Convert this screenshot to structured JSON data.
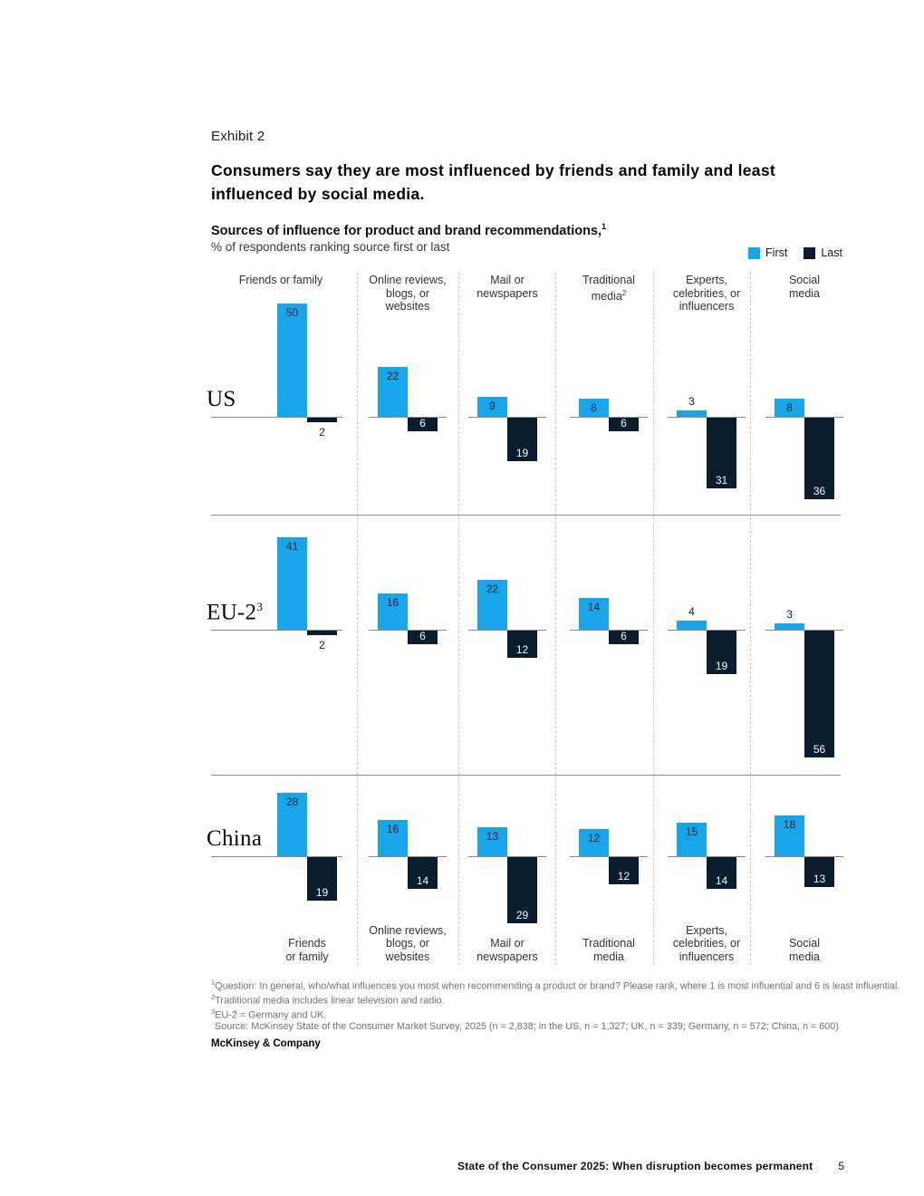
{
  "exhibit_label": "Exhibit 2",
  "title_lines": [
    "Consumers say they are most influenced by friends and family and least",
    "influenced by social media."
  ],
  "chart_title": "Sources of influence for product and brand recommendations,",
  "chart_title_sup": "1",
  "chart_subtitle": "% of respondents ranking source first or last",
  "chart_data": {
    "type": "bar",
    "title": "Sources of influence for product and brand recommendations",
    "unit": "% of respondents ranking source first or last",
    "legend_labels": [
      "First",
      "Last"
    ],
    "legend_position": "top-right",
    "colors": {
      "first": "#18A5E9",
      "last": "#0A1D2E"
    },
    "categories": [
      "Friends or family",
      "Online reviews, blogs, or websites",
      "Mail or newspapers",
      "Traditional media",
      "Experts, celebrities, or influencers",
      "Social media"
    ],
    "column_headers_top": [
      {
        "lines": [
          "Friends or family"
        ],
        "sup": ""
      },
      {
        "lines": [
          "Online reviews,",
          "blogs, or",
          "websites"
        ],
        "sup": ""
      },
      {
        "lines": [
          "Mail or",
          "newspapers"
        ],
        "sup": ""
      },
      {
        "lines": [
          "Traditional",
          "media"
        ],
        "sup": "2"
      },
      {
        "lines": [
          "Experts,",
          "celebrities, or",
          "influencers"
        ],
        "sup": ""
      },
      {
        "lines": [
          "Social",
          "media"
        ],
        "sup": ""
      }
    ],
    "column_headers_bottom": [
      {
        "lines": [
          "Friends",
          "or family"
        ],
        "sup": ""
      },
      {
        "lines": [
          "Online reviews,",
          "blogs, or",
          "websites"
        ],
        "sup": ""
      },
      {
        "lines": [
          "Mail or",
          "newspapers"
        ],
        "sup": ""
      },
      {
        "lines": [
          "Traditional",
          "media"
        ],
        "sup": ""
      },
      {
        "lines": [
          "Experts,",
          "celebrities, or",
          "influencers"
        ],
        "sup": ""
      },
      {
        "lines": [
          "Social",
          "media"
        ],
        "sup": ""
      }
    ],
    "series": [
      {
        "region": "US",
        "region_sup": "",
        "first": [
          50,
          22,
          9,
          8,
          3,
          8
        ],
        "last": [
          2,
          6,
          19,
          6,
          31,
          36
        ]
      },
      {
        "region": "EU-2",
        "region_sup": "3",
        "first": [
          41,
          16,
          22,
          14,
          4,
          3
        ],
        "last": [
          2,
          6,
          12,
          6,
          19,
          56
        ]
      },
      {
        "region": "China",
        "region_sup": "",
        "first": [
          28,
          16,
          13,
          12,
          15,
          18
        ],
        "last": [
          19,
          14,
          29,
          12,
          14,
          13
        ]
      }
    ]
  },
  "footnotes": [
    {
      "sup": "1",
      "text": "Question: In general, who/what influences you most when recommending a product or brand? Please rank, where 1 is most influential and 6 is least influential."
    },
    {
      "sup": "2",
      "text": "Traditional media includes linear television and radio."
    },
    {
      "sup": "3",
      "text": "EU-2 = Germany and UK."
    },
    {
      "sup": "",
      "text": "Source: McKinsey State of the Consumer Market Survey, 2025 (n = 2,838; in the US, n = 1,327; UK, n = 339; Germany, n = 572; China, n = 600)"
    }
  ],
  "brand": "McKinsey & Company",
  "footer": {
    "text": "State of the Consumer 2025: When disruption becomes permanent",
    "page": "5"
  }
}
